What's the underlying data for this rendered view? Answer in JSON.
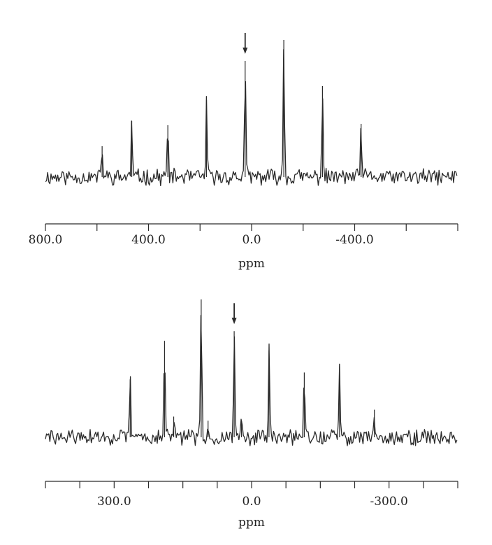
{
  "colors": {
    "ink": "#2a2a2a",
    "background": "#ffffff"
  },
  "chart_data": [
    {
      "type": "line",
      "xlabel": "ppm",
      "xlim": [
        800.0,
        -800.0
      ],
      "reversed_x": true,
      "tick_labels": [
        "800.0",
        "400.0",
        "0.0",
        "-400.0"
      ],
      "tick_values": [
        800,
        400,
        0,
        -400
      ],
      "minor_tick_values": [
        800,
        600,
        400,
        200,
        0,
        -200,
        -400,
        -600
      ],
      "baseline": 0,
      "noise_amplitude": 0.05,
      "ylim": [
        -0.25,
        1.1
      ],
      "peaks": [
        {
          "ppm": 580,
          "height": 0.22
        },
        {
          "ppm": 465,
          "height": 0.4
        },
        {
          "ppm": 325,
          "height": 0.37
        },
        {
          "ppm": 175,
          "height": 0.55
        },
        {
          "ppm": 25,
          "height": 0.83
        },
        {
          "ppm": -125,
          "height": 0.98
        },
        {
          "ppm": -275,
          "height": 0.65
        },
        {
          "ppm": -425,
          "height": 0.38
        }
      ],
      "marked_peak_ppm": 25
    },
    {
      "type": "line",
      "xlabel": "ppm",
      "xlim": [
        450.0,
        -450.0
      ],
      "reversed_x": true,
      "tick_labels": [
        "300.0",
        "0.0",
        "-300.0"
      ],
      "tick_values": [
        300,
        0,
        -300
      ],
      "minor_tick_values": [
        450,
        375,
        300,
        225,
        150,
        75,
        0,
        -75,
        -150,
        -225,
        -300,
        -375
      ],
      "baseline": 0,
      "noise_amplitude": 0.05,
      "ylim": [
        -0.25,
        1.1
      ],
      "peaks": [
        {
          "ppm": 265,
          "height": 0.42
        },
        {
          "ppm": 190,
          "height": 0.7
        },
        {
          "ppm": 170,
          "height": 0.15
        },
        {
          "ppm": 110,
          "height": 1.0
        },
        {
          "ppm": 95,
          "height": 0.12
        },
        {
          "ppm": 38,
          "height": 0.77
        },
        {
          "ppm": 22,
          "height": 0.12
        },
        {
          "ppm": -38,
          "height": 0.63
        },
        {
          "ppm": -115,
          "height": 0.47
        },
        {
          "ppm": -192,
          "height": 0.52
        },
        {
          "ppm": -268,
          "height": 0.2
        }
      ],
      "marked_peak_ppm": 38
    }
  ]
}
